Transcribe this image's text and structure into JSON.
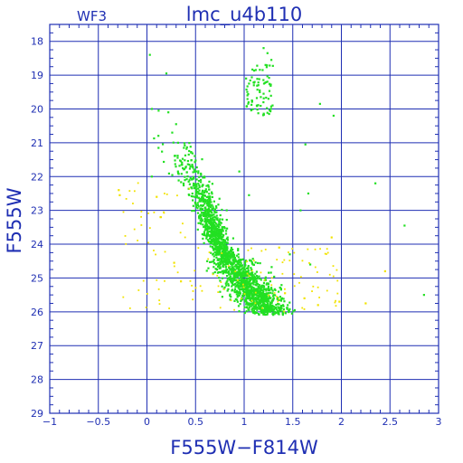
{
  "colors": {
    "axis": "#1f2fb3",
    "background": "#ffffff",
    "main_points": "#22e022",
    "secondary_points": "#f2e300"
  },
  "chart_data": {
    "type": "scatter",
    "title": "lmc_u4b110",
    "subtitle": "WF3",
    "xlabel": "F555W−F814W",
    "ylabel": "F555W",
    "xlim": [
      -1,
      3
    ],
    "ylim": [
      29,
      17.5
    ],
    "y_inverted": true,
    "grid": true,
    "x_ticks": [
      "−1",
      "−0.5",
      "0",
      "0.5",
      "1",
      "1.5",
      "2",
      "2.5",
      "3"
    ],
    "y_ticks": [
      "18",
      "19",
      "20",
      "21",
      "22",
      "23",
      "24",
      "25",
      "26",
      "27",
      "28",
      "29"
    ],
    "series": [
      {
        "color": "#22e022",
        "points": [
          [
            0.03,
            18.4
          ],
          [
            1.2,
            18.2
          ],
          [
            1.24,
            18.35
          ],
          [
            1.28,
            18.55
          ],
          [
            1.22,
            18.7
          ],
          [
            1.19,
            18.85
          ],
          [
            0.2,
            18.95
          ],
          [
            1.02,
            19.1
          ],
          [
            1.05,
            19.25
          ],
          [
            1.1,
            19.3
          ],
          [
            1.16,
            19.45
          ],
          [
            1.2,
            19.55
          ],
          [
            1.08,
            19.75
          ],
          [
            1.13,
            19.9
          ],
          [
            1.25,
            19.7
          ],
          [
            0.05,
            20.0
          ],
          [
            0.12,
            20.05
          ],
          [
            0.22,
            20.1
          ],
          [
            0.3,
            20.45
          ],
          [
            0.26,
            20.7
          ],
          [
            0.32,
            21.0
          ],
          [
            0.38,
            21.15
          ],
          [
            0.43,
            21.35
          ],
          [
            1.78,
            19.85
          ],
          [
            1.92,
            20.2
          ],
          [
            1.63,
            21.05
          ],
          [
            2.35,
            22.2
          ],
          [
            2.65,
            23.45
          ],
          [
            2.85,
            25.5
          ],
          [
            1.66,
            22.5
          ],
          [
            1.58,
            23.0
          ],
          [
            1.47,
            24.3
          ],
          [
            1.68,
            24.6
          ],
          [
            0.95,
            21.85
          ],
          [
            1.05,
            22.55
          ],
          [
            0.05,
            22.0
          ],
          [
            0.48,
            22.05
          ],
          [
            0.52,
            22.45
          ],
          [
            0.58,
            22.7
          ],
          [
            0.6,
            23.0
          ],
          [
            0.64,
            23.35
          ],
          [
            0.67,
            23.7
          ],
          [
            0.72,
            24.0
          ],
          [
            0.78,
            24.3
          ],
          [
            0.84,
            24.55
          ],
          [
            0.91,
            24.85
          ],
          [
            1.0,
            25.1
          ],
          [
            1.12,
            25.35
          ],
          [
            1.25,
            25.6
          ],
          [
            1.4,
            25.8
          ],
          [
            1.52,
            25.95
          ]
        ]
      },
      {
        "color": "#f2e300",
        "points": [
          [
            -0.29,
            22.4
          ],
          [
            -0.28,
            22.55
          ],
          [
            0.1,
            22.6
          ],
          [
            0.14,
            23.2
          ],
          [
            1.42,
            25.45
          ],
          [
            1.62,
            25.6
          ],
          [
            1.76,
            25.8
          ],
          [
            1.98,
            25.7
          ],
          [
            2.25,
            25.75
          ],
          [
            2.45,
            24.8
          ],
          [
            1.9,
            23.8
          ],
          [
            1.36,
            24.1
          ],
          [
            0.28,
            24.55
          ],
          [
            0.35,
            25.1
          ]
        ]
      }
    ]
  }
}
